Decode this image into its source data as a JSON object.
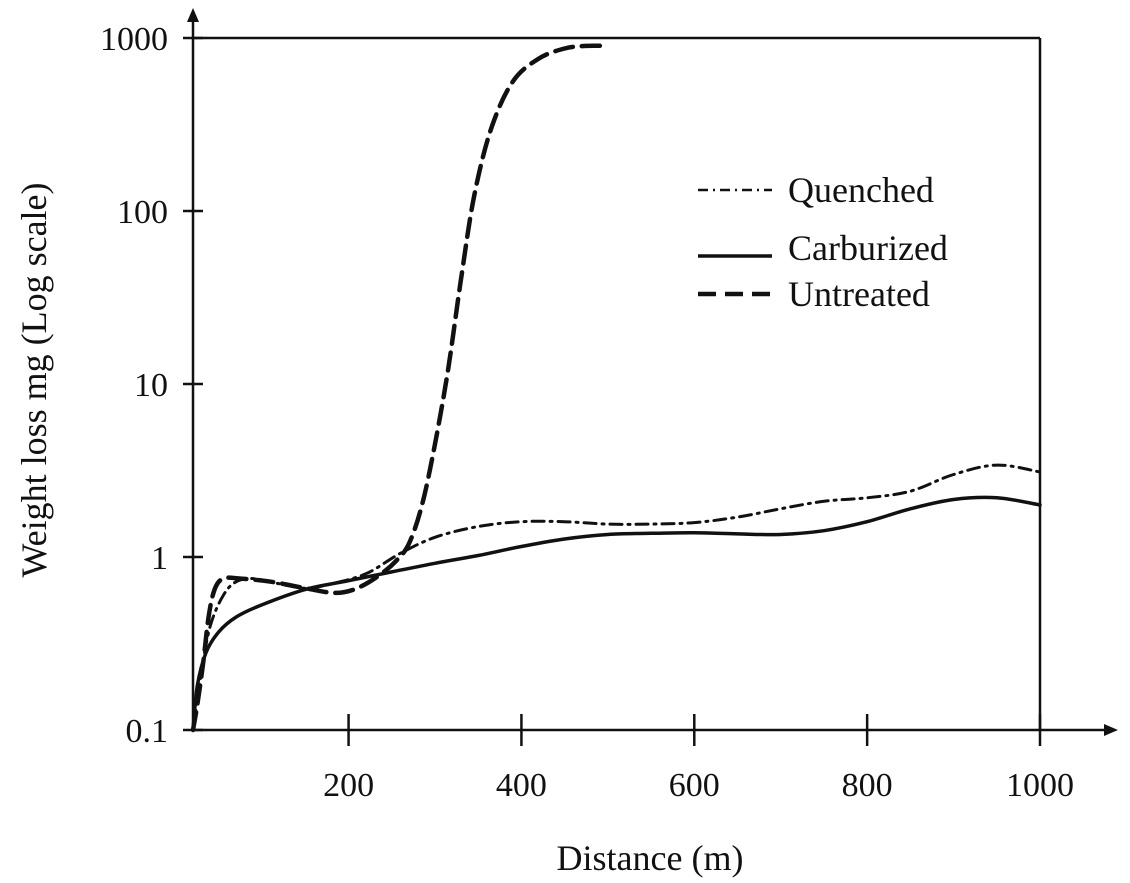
{
  "chart_data": {
    "type": "line",
    "title": "",
    "xlabel": "Distance (m)",
    "ylabel": "Weight loss mg (Log scale)",
    "x_ticks": [
      200,
      400,
      600,
      800,
      1000
    ],
    "x_tick_labels": [
      "200",
      "400",
      "600",
      "800",
      "1000"
    ],
    "y_ticks": [
      0.1,
      1,
      10,
      100,
      1000
    ],
    "y_tick_labels": [
      "0.1",
      "1",
      "10",
      "100",
      "1000"
    ],
    "xlim": [
      20,
      1000
    ],
    "ylim": [
      0.1,
      1000
    ],
    "y_scale": "log",
    "grid": false,
    "legend_position": "top-right",
    "series": [
      {
        "name": "Quenched",
        "style": "dash-dot",
        "color": "#111111",
        "points": [
          [
            20,
            0.1
          ],
          [
            30,
            0.22
          ],
          [
            40,
            0.4
          ],
          [
            55,
            0.6
          ],
          [
            70,
            0.72
          ],
          [
            90,
            0.75
          ],
          [
            120,
            0.7
          ],
          [
            150,
            0.66
          ],
          [
            180,
            0.7
          ],
          [
            220,
            0.8
          ],
          [
            260,
            1.05
          ],
          [
            300,
            1.3
          ],
          [
            350,
            1.5
          ],
          [
            400,
            1.6
          ],
          [
            450,
            1.6
          ],
          [
            500,
            1.55
          ],
          [
            550,
            1.55
          ],
          [
            600,
            1.58
          ],
          [
            650,
            1.7
          ],
          [
            700,
            1.9
          ],
          [
            750,
            2.1
          ],
          [
            800,
            2.2
          ],
          [
            850,
            2.4
          ],
          [
            900,
            3.0
          ],
          [
            950,
            3.4
          ],
          [
            1000,
            3.1
          ]
        ]
      },
      {
        "name": "Carburized",
        "style": "solid",
        "color": "#111111",
        "points": [
          [
            20,
            0.1
          ],
          [
            25,
            0.18
          ],
          [
            35,
            0.28
          ],
          [
            50,
            0.37
          ],
          [
            70,
            0.45
          ],
          [
            100,
            0.53
          ],
          [
            150,
            0.65
          ],
          [
            200,
            0.73
          ],
          [
            250,
            0.82
          ],
          [
            300,
            0.92
          ],
          [
            350,
            1.02
          ],
          [
            400,
            1.15
          ],
          [
            450,
            1.27
          ],
          [
            500,
            1.35
          ],
          [
            550,
            1.37
          ],
          [
            600,
            1.38
          ],
          [
            650,
            1.36
          ],
          [
            700,
            1.35
          ],
          [
            750,
            1.42
          ],
          [
            800,
            1.6
          ],
          [
            850,
            1.9
          ],
          [
            900,
            2.15
          ],
          [
            950,
            2.2
          ],
          [
            1000,
            2.0
          ]
        ]
      },
      {
        "name": "Untreated",
        "style": "dashed",
        "color": "#111111",
        "points": [
          [
            20,
            0.1
          ],
          [
            25,
            0.14
          ],
          [
            32,
            0.25
          ],
          [
            38,
            0.45
          ],
          [
            45,
            0.65
          ],
          [
            55,
            0.75
          ],
          [
            75,
            0.75
          ],
          [
            110,
            0.72
          ],
          [
            150,
            0.66
          ],
          [
            185,
            0.62
          ],
          [
            210,
            0.66
          ],
          [
            235,
            0.78
          ],
          [
            255,
            0.95
          ],
          [
            270,
            1.2
          ],
          [
            285,
            2.0
          ],
          [
            300,
            4.5
          ],
          [
            315,
            12
          ],
          [
            330,
            40
          ],
          [
            345,
            120
          ],
          [
            365,
            300
          ],
          [
            390,
            560
          ],
          [
            420,
            760
          ],
          [
            450,
            870
          ],
          [
            475,
            900
          ],
          [
            500,
            900
          ]
        ]
      }
    ]
  }
}
